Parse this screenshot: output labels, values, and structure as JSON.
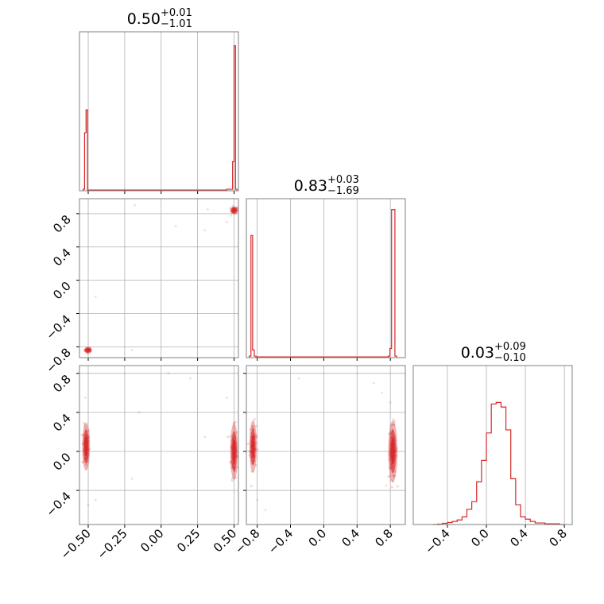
{
  "chart_data": {
    "type": "corner",
    "color": "#d62728",
    "grid": true,
    "parameters": [
      {
        "lim": [
          -0.56,
          0.53
        ],
        "ticks": [
          -0.5,
          -0.25,
          0.0,
          0.25,
          0.5
        ],
        "tick_labels": [
          "−0.50",
          "−0.25",
          "0.00",
          "0.25",
          "0.50"
        ]
      },
      {
        "lim": [
          -0.93,
          0.98
        ],
        "ticks": [
          -0.8,
          -0.4,
          0.0,
          0.4,
          0.8
        ],
        "tick_labels": [
          "−0.8",
          "−0.4",
          "0.0",
          "0.4",
          "0.8"
        ]
      },
      {
        "lim": [
          -0.75,
          0.88
        ],
        "ticks": [
          -0.4,
          0.0,
          0.4,
          0.8
        ],
        "tick_labels": [
          "−0.4",
          "0.0",
          "0.4",
          "0.8"
        ]
      }
    ],
    "titles": [
      {
        "value": "0.50",
        "plus": "+0.01",
        "minus": "−1.01"
      },
      {
        "value": "0.83",
        "plus": "+0.03",
        "minus": "−1.69"
      },
      {
        "value": "0.03",
        "plus": "+0.09",
        "minus": "−0.10"
      }
    ],
    "histograms": [
      {
        "param": 0,
        "bins": [
          [
            -0.535,
            -0.525,
            0.01
          ],
          [
            -0.525,
            -0.515,
            0.38
          ],
          [
            -0.515,
            -0.505,
            0.53
          ],
          [
            -0.505,
            -0.495,
            0.005
          ],
          [
            -0.495,
            0.45,
            0.005
          ],
          [
            0.45,
            0.46,
            0.01
          ],
          [
            0.46,
            0.47,
            0.01
          ],
          [
            0.47,
            0.48,
            0.01
          ],
          [
            0.48,
            0.49,
            0.01
          ],
          [
            0.49,
            0.5,
            0.19
          ],
          [
            0.5,
            0.51,
            0.95
          ],
          [
            0.51,
            0.52,
            0.01
          ]
        ]
      },
      {
        "param": 1,
        "bins": [
          [
            -0.895,
            -0.875,
            0.01
          ],
          [
            -0.875,
            -0.855,
            0.8
          ],
          [
            -0.855,
            -0.835,
            0.05
          ],
          [
            -0.835,
            -0.815,
            0.01
          ],
          [
            -0.815,
            0.775,
            0.005
          ],
          [
            0.775,
            0.795,
            0.01
          ],
          [
            0.795,
            0.815,
            0.06
          ],
          [
            0.815,
            0.835,
            0.97
          ],
          [
            0.835,
            0.855,
            0.97
          ],
          [
            0.855,
            0.875,
            0.01
          ]
        ]
      },
      {
        "param": 2,
        "bins": [
          [
            -0.55,
            -0.5,
            0.0
          ],
          [
            -0.5,
            -0.45,
            0.003
          ],
          [
            -0.45,
            -0.4,
            0.008
          ],
          [
            -0.4,
            -0.35,
            0.013
          ],
          [
            -0.35,
            -0.3,
            0.02
          ],
          [
            -0.3,
            -0.25,
            0.03
          ],
          [
            -0.25,
            -0.2,
            0.05
          ],
          [
            -0.2,
            -0.15,
            0.1
          ],
          [
            -0.15,
            -0.1,
            0.15
          ],
          [
            -0.1,
            -0.05,
            0.28
          ],
          [
            -0.05,
            0.0,
            0.42
          ],
          [
            0.0,
            0.05,
            0.6
          ],
          [
            0.05,
            0.1,
            0.79
          ],
          [
            0.1,
            0.15,
            0.8
          ],
          [
            0.15,
            0.2,
            0.77
          ],
          [
            0.2,
            0.25,
            0.62
          ],
          [
            0.25,
            0.3,
            0.3
          ],
          [
            0.3,
            0.35,
            0.13
          ],
          [
            0.35,
            0.4,
            0.05
          ],
          [
            0.4,
            0.45,
            0.035
          ],
          [
            0.45,
            0.5,
            0.02
          ],
          [
            0.5,
            0.55,
            0.01
          ],
          [
            0.55,
            0.6,
            0.01
          ],
          [
            0.6,
            0.65,
            0.005
          ],
          [
            0.65,
            0.7,
            0.005
          ],
          [
            0.7,
            0.75,
            0.005
          ],
          [
            0.75,
            0.8,
            0.0
          ]
        ]
      }
    ],
    "scatter": [
      {
        "x_param": 0,
        "y_param": 1,
        "clusters": [
          {
            "x": -0.5,
            "y": -0.84,
            "sx": 0.012,
            "sy": 0.015,
            "n": 40
          },
          {
            "x": 0.5,
            "y": 0.84,
            "sx": 0.012,
            "sy": 0.02,
            "n": 45
          }
        ],
        "outliers": [
          [
            -0.45,
            -0.2
          ],
          [
            -0.2,
            -0.84
          ],
          [
            0.1,
            0.65
          ],
          [
            0.32,
            0.85
          ],
          [
            0.45,
            0.7
          ],
          [
            0.48,
            0.78
          ],
          [
            -0.18,
            0.9
          ],
          [
            0.3,
            0.6
          ]
        ]
      },
      {
        "x_param": 0,
        "y_param": 2,
        "clusters": [
          {
            "x": -0.515,
            "y": 0.05,
            "sx": 0.012,
            "sy": 0.11,
            "n": 60
          },
          {
            "x": 0.5,
            "y": 0.0,
            "sx": 0.012,
            "sy": 0.13,
            "n": 70
          }
        ],
        "outliers": [
          [
            -0.52,
            0.55
          ],
          [
            -0.45,
            -0.5
          ],
          [
            -0.2,
            -0.28
          ],
          [
            -0.15,
            0.4
          ],
          [
            0.45,
            0.55
          ],
          [
            0.3,
            0.15
          ],
          [
            0.05,
            0.8
          ],
          [
            0.2,
            0.75
          ],
          [
            -0.5,
            -0.55
          ]
        ]
      },
      {
        "x_param": 1,
        "y_param": 2,
        "clusters": [
          {
            "x": -0.85,
            "y": 0.05,
            "sx": 0.02,
            "sy": 0.12,
            "n": 60
          },
          {
            "x": 0.83,
            "y": 0.0,
            "sx": 0.025,
            "sy": 0.14,
            "n": 70
          }
        ],
        "outliers": [
          [
            -0.7,
            -0.6
          ],
          [
            -0.3,
            0.75
          ],
          [
            0.6,
            0.7
          ],
          [
            0.7,
            0.6
          ],
          [
            0.75,
            -0.35
          ],
          [
            -0.8,
            -0.5
          ],
          [
            0.8,
            0.5
          ]
        ]
      }
    ]
  }
}
